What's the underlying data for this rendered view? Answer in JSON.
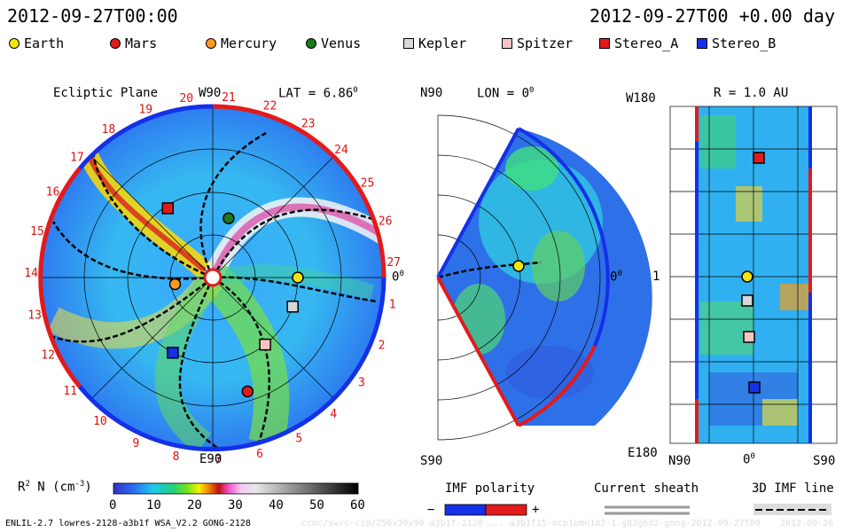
{
  "header": {
    "timestamp_left": "2012-09-27T00:00",
    "timestamp_right": "2012-09-27T00 +0.00 day"
  },
  "legend": [
    {
      "label": "Earth",
      "color": "#f4e40c",
      "shape": "circle"
    },
    {
      "label": "Mars",
      "color": "#e31a1c",
      "shape": "circle"
    },
    {
      "label": "Mercury",
      "color": "#ff9a1e",
      "shape": "circle"
    },
    {
      "label": "Venus",
      "color": "#1a7a1a",
      "shape": "circle"
    },
    {
      "label": "Kepler",
      "color": "#d8d8d8",
      "shape": "square"
    },
    {
      "label": "Spitzer",
      "color": "#f8c4c4",
      "shape": "square"
    },
    {
      "label": "Stereo_A",
      "color": "#e31a1c",
      "shape": "square"
    },
    {
      "label": "Stereo_B",
      "color": "#1430e8",
      "shape": "square"
    }
  ],
  "panels": {
    "ecliptic": {
      "title": "Ecliptic Plane",
      "top_label": "W90",
      "lat_label": "LAT = 6.86",
      "lat_sup": "0",
      "bottom_label": "E90",
      "right_label": "0",
      "right_sup": "0",
      "carrington": [
        "1",
        "2",
        "3",
        "4",
        "5",
        "6",
        "7",
        "8",
        "9",
        "10",
        "11",
        "12",
        "13",
        "14",
        "15",
        "16",
        "17",
        "18",
        "19",
        "20",
        "21",
        "22",
        "23",
        "24",
        "25",
        "26",
        "27"
      ]
    },
    "meridional": {
      "top_label": "N90",
      "lon_label": "LON = 0",
      "lon_sup": "0",
      "bottom_label": "S90",
      "right_label": "0",
      "right_sup": "0"
    },
    "radial": {
      "r_label": "R = 1.0 AU",
      "top_left": "W180",
      "mid_left": "1",
      "bottom_left": "E180",
      "x_left": "N90",
      "x_mid": "0",
      "x_mid_sup": "0",
      "x_right": "S90"
    }
  },
  "colorbar": {
    "label_main": "R",
    "label_sup": "2",
    "label_rest": " N (cm",
    "label_sup2": "-3",
    "label_end": ")",
    "ticks": [
      "0",
      "10",
      "20",
      "30",
      "40",
      "50",
      "60"
    ]
  },
  "imf": {
    "title": "IMF polarity",
    "minus": "−",
    "plus": "+",
    "neg_color": "#1430e8",
    "pos_color": "#e31a1c"
  },
  "sheath": {
    "title": "Current sheath"
  },
  "imf3d": {
    "title": "3D IMF line"
  },
  "footer": {
    "model": "ENLIL-2.7 lowres-2128-a3b1f WSA_V2.2 GONG-2128",
    "run": "ccmc/swrc-cid/256x30x90 a3b1f-2128 ... a3b1f15-mcp1umn1d2-1.g83g6d2-gong-2012-09-27T00",
    "date": "2012-09-26"
  },
  "chart_data": {
    "type": "heatmap",
    "title": "Ecliptic Plane",
    "colorbar_range": [
      0,
      60
    ],
    "colorbar_unit": "R^2 N (cm^-3)",
    "bodies_ecliptic": [
      {
        "name": "Earth",
        "r_au": 1.0,
        "lon_deg": 0
      },
      {
        "name": "Mars",
        "r_au": 1.4,
        "lon_deg": -73
      },
      {
        "name": "Mercury",
        "r_au": 0.45,
        "lon_deg": -170
      },
      {
        "name": "Venus",
        "r_au": 0.72,
        "lon_deg": 75
      },
      {
        "name": "Kepler",
        "r_au": 1.0,
        "lon_deg": -20
      },
      {
        "name": "Spitzer",
        "r_au": 1.0,
        "lon_deg": -52
      },
      {
        "name": "Stereo_A",
        "r_au": 0.97,
        "lon_deg": 123
      },
      {
        "name": "Stereo_B",
        "r_au": 1.0,
        "lon_deg": -118
      }
    ]
  }
}
